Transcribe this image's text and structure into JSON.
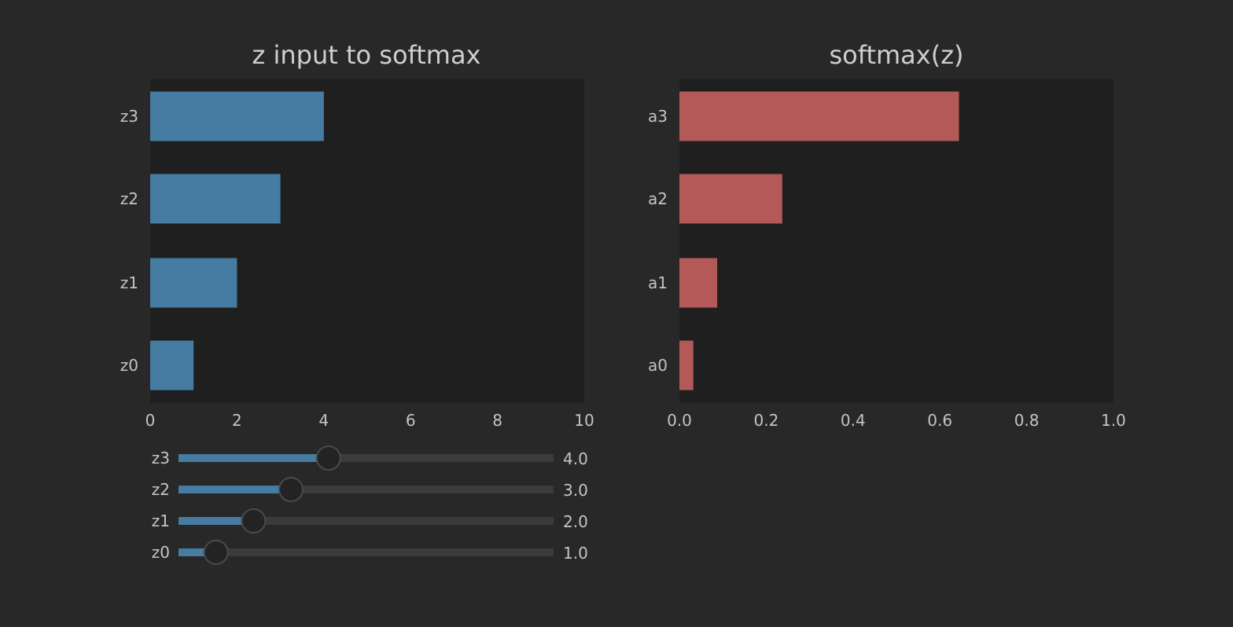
{
  "colors": {
    "background": "#282828",
    "plot_background": "#1f1f1f",
    "input_bar": "#467ca1",
    "output_bar": "#b35957",
    "slider_track": "#3b3b3b",
    "slider_fill": "#467ca1",
    "slider_thumb": "#232323",
    "slider_thumb_border": "#4a4a4a",
    "text": "#c4c4c4",
    "title_text": "#cfcfcf"
  },
  "chart_data": [
    {
      "type": "bar",
      "orientation": "horizontal",
      "title": "z input to softmax",
      "categories": [
        "z0",
        "z1",
        "z2",
        "z3"
      ],
      "values": [
        1.0,
        2.0,
        3.0,
        4.0
      ],
      "xlim": [
        0,
        10
      ],
      "xticks": [
        "0",
        "2",
        "4",
        "6",
        "8",
        "10"
      ],
      "grid": false,
      "legend": "none"
    },
    {
      "type": "bar",
      "orientation": "horizontal",
      "title": "softmax(z)",
      "categories": [
        "a0",
        "a1",
        "a2",
        "a3"
      ],
      "values": [
        0.032,
        0.087,
        0.237,
        0.644
      ],
      "xlim": [
        0,
        1.0
      ],
      "xticks": [
        "0.0",
        "0.2",
        "0.4",
        "0.6",
        "0.8",
        "1.0"
      ],
      "grid": false,
      "legend": "none"
    }
  ],
  "sliders": [
    {
      "label": "z3",
      "value": 4.0,
      "value_text": "4.0",
      "min": 0,
      "max": 10
    },
    {
      "label": "z2",
      "value": 3.0,
      "value_text": "3.0",
      "min": 0,
      "max": 10
    },
    {
      "label": "z1",
      "value": 2.0,
      "value_text": "2.0",
      "min": 0,
      "max": 10
    },
    {
      "label": "z0",
      "value": 1.0,
      "value_text": "1.0",
      "min": 0,
      "max": 10
    }
  ]
}
